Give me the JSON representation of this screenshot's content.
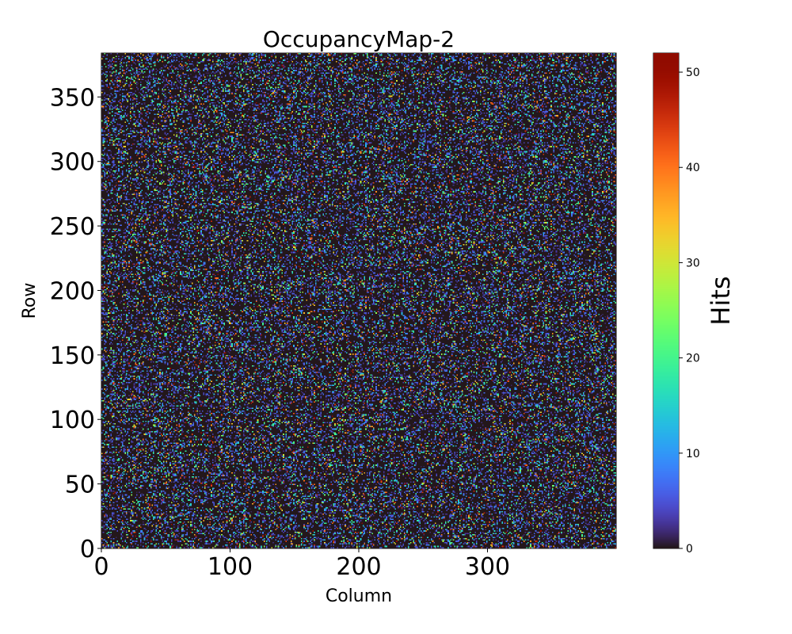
{
  "chart_data": {
    "type": "heatmap",
    "title": "OccupancyMap-2",
    "xlabel": "Column",
    "ylabel": "Row",
    "colorbar_label": "Hits",
    "colormap": "turbo",
    "shape": {
      "columns": 400,
      "rows": 384
    },
    "xlim": [
      0,
      400
    ],
    "ylim": [
      0,
      384
    ],
    "vmin": 0,
    "vmax": 52,
    "xticks": [
      0,
      100,
      200,
      300
    ],
    "yticks": [
      0,
      50,
      100,
      150,
      200,
      250,
      300,
      350
    ],
    "colorbar_ticks": [
      0,
      10,
      20,
      30,
      40,
      50
    ],
    "distribution": {
      "description": "sparse random hits, most pixels 0",
      "nonzero_fraction": 0.28,
      "seed": 2
    }
  }
}
